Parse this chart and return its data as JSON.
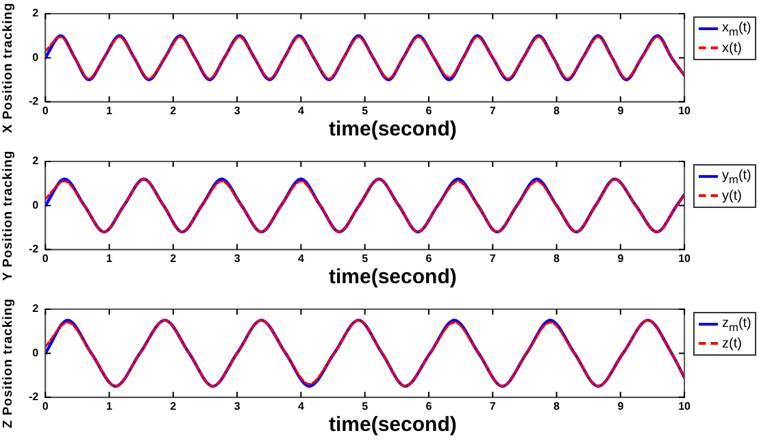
{
  "chart_data": [
    {
      "type": "line",
      "xlabel": "time(second)",
      "ylabel": "X Position tracking",
      "xlim": [
        0,
        10
      ],
      "ylim": [
        -2,
        2
      ],
      "xticks": [
        0,
        1,
        2,
        3,
        4,
        5,
        6,
        7,
        8,
        9,
        10
      ],
      "yticks": [
        -2,
        0,
        2
      ],
      "grid": false,
      "legend": "right",
      "marker": "none",
      "x": [
        0,
        0.24,
        0.46,
        0.68,
        0.92,
        1.16,
        1.39,
        1.62,
        1.87,
        2.11,
        2.34,
        2.57,
        2.8,
        3.04,
        3.27,
        3.51,
        3.74,
        3.97,
        4.2,
        4.44,
        4.67,
        4.9,
        5.13,
        5.37,
        5.6,
        5.84,
        6.08,
        6.32,
        6.54,
        6.76,
        7.0,
        7.24,
        7.48,
        7.72,
        7.95,
        8.17,
        8.41,
        8.65,
        8.87,
        9.09,
        9.33,
        9.58,
        9.8,
        10
      ],
      "series": [
        {
          "name": "x$_{m}$(t)",
          "color": "#0000ff",
          "line_style": "solid",
          "values": [
            0,
            1,
            0,
            -1,
            0,
            1,
            0,
            -1,
            0,
            1,
            0,
            -1,
            0,
            1,
            0,
            -1,
            0,
            1,
            0,
            -1,
            0,
            1,
            0,
            -1,
            0,
            1,
            0,
            -1,
            0,
            1,
            0,
            -1,
            0,
            1,
            0,
            -1,
            0,
            1,
            0,
            -1,
            0,
            1,
            0,
            -0.8
          ]
        },
        {
          "name": "x(t)",
          "color": "#ff0000",
          "line_style": "dashed",
          "values": [
            0.3,
            0.95,
            0,
            -0.95,
            0,
            0.95,
            0,
            -0.95,
            0,
            0.95,
            0,
            -0.95,
            0,
            0.95,
            0,
            -0.95,
            0,
            0.95,
            0,
            -0.95,
            0,
            0.95,
            0,
            -0.95,
            0,
            0.95,
            0,
            -0.9,
            0,
            0.95,
            0,
            -0.95,
            0,
            0.95,
            0,
            -0.95,
            0,
            0.95,
            0,
            -0.95,
            0,
            0.95,
            0,
            -0.8
          ]
        }
      ]
    },
    {
      "type": "line",
      "xlabel": "time(second)",
      "ylabel": "Y Position tracking",
      "xlim": [
        0,
        10
      ],
      "ylim": [
        -2,
        2
      ],
      "xticks": [
        0,
        1,
        2,
        3,
        4,
        5,
        6,
        7,
        8,
        9,
        10
      ],
      "yticks": [
        -2,
        0,
        2
      ],
      "grid": false,
      "legend": "right",
      "marker": "none",
      "x": [
        0,
        0.3,
        0.61,
        0.92,
        1.23,
        1.54,
        1.85,
        2.14,
        2.45,
        2.76,
        3.07,
        3.38,
        3.69,
        4.0,
        4.3,
        4.6,
        4.91,
        5.22,
        5.53,
        5.83,
        6.14,
        6.46,
        6.77,
        7.07,
        7.38,
        7.69,
        8.0,
        8.31,
        8.61,
        8.91,
        9.24,
        9.57,
        9.88,
        10
      ],
      "series": [
        {
          "name": "y$_{m}$(t)",
          "color": "#0000ff",
          "line_style": "solid",
          "values": [
            0,
            1.2,
            0,
            -1.2,
            0,
            1.2,
            0,
            -1.2,
            0,
            1.2,
            0,
            -1.2,
            0,
            1.2,
            0,
            -1.2,
            0,
            1.2,
            0,
            -1.2,
            0,
            1.2,
            0,
            -1.2,
            0,
            1.2,
            0,
            -1.2,
            0,
            1.2,
            0,
            -1.2,
            0,
            0.5
          ]
        },
        {
          "name": "y(t)",
          "color": "#ff0000",
          "line_style": "dashed",
          "values": [
            0.3,
            1.1,
            0,
            -1.2,
            0,
            1.2,
            0,
            -1.2,
            0,
            1.1,
            0,
            -1.2,
            0,
            1.1,
            0,
            -1.2,
            0,
            1.2,
            0,
            -1.2,
            0,
            1.1,
            0,
            -1.2,
            0,
            1.1,
            0,
            -1.2,
            0,
            1.2,
            0,
            -1.2,
            0,
            0.5
          ]
        }
      ]
    },
    {
      "type": "line",
      "xlabel": "time(second)",
      "ylabel": "Z Position tracking",
      "xlim": [
        0,
        10
      ],
      "ylim": [
        -2,
        2
      ],
      "xticks": [
        0,
        1,
        2,
        3,
        4,
        5,
        6,
        7,
        8,
        9,
        10
      ],
      "yticks": [
        -2,
        0,
        2
      ],
      "grid": false,
      "legend": "right",
      "marker": "none",
      "x": [
        0,
        0.35,
        0.72,
        1.1,
        1.48,
        1.87,
        2.25,
        2.62,
        3.0,
        3.38,
        3.76,
        4.13,
        4.52,
        4.9,
        5.27,
        5.63,
        6.02,
        6.4,
        6.78,
        7.15,
        7.53,
        7.9,
        8.28,
        8.65,
        9.04,
        9.43,
        9.8,
        10
      ],
      "series": [
        {
          "name": "z$_{m}$(t)",
          "color": "#0000ff",
          "line_style": "solid",
          "values": [
            0,
            1.5,
            0,
            -1.5,
            0,
            1.5,
            0,
            -1.5,
            0,
            1.5,
            0,
            -1.5,
            0,
            1.5,
            0,
            -1.5,
            0,
            1.5,
            0,
            -1.5,
            0,
            1.5,
            0,
            -1.5,
            0,
            1.5,
            0,
            -1.1
          ]
        },
        {
          "name": "z(t)",
          "color": "#ff0000",
          "line_style": "dashed",
          "values": [
            0.3,
            1.4,
            0,
            -1.5,
            0,
            1.5,
            0,
            -1.5,
            0,
            1.5,
            0,
            -1.4,
            0,
            1.5,
            0,
            -1.5,
            0,
            1.4,
            0,
            -1.5,
            0,
            1.4,
            0,
            -1.5,
            0,
            1.5,
            0,
            -1.1
          ]
        }
      ]
    }
  ]
}
